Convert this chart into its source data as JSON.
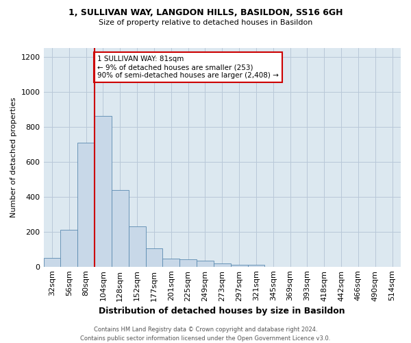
{
  "title1": "1, SULLIVAN WAY, LANGDON HILLS, BASILDON, SS16 6GH",
  "title2": "Size of property relative to detached houses in Basildon",
  "xlabel": "Distribution of detached houses by size in Basildon",
  "ylabel": "Number of detached properties",
  "categories": [
    "32sqm",
    "56sqm",
    "80sqm",
    "104sqm",
    "128sqm",
    "152sqm",
    "177sqm",
    "201sqm",
    "225sqm",
    "249sqm",
    "273sqm",
    "297sqm",
    "321sqm",
    "345sqm",
    "369sqm",
    "393sqm",
    "418sqm",
    "442sqm",
    "466sqm",
    "490sqm",
    "514sqm"
  ],
  "values": [
    50,
    210,
    710,
    860,
    440,
    230,
    105,
    47,
    42,
    35,
    20,
    10,
    10,
    0,
    0,
    0,
    0,
    0,
    0,
    0,
    0
  ],
  "bar_color": "#c8d8e8",
  "bar_edge_color": "#5a8ab0",
  "vline_x_index": 2,
  "vline_color": "#cc0000",
  "annotation_text": "1 SULLIVAN WAY: 81sqm\n← 9% of detached houses are smaller (253)\n90% of semi-detached houses are larger (2,408) →",
  "annotation_box_color": "#cc0000",
  "footer": "Contains HM Land Registry data © Crown copyright and database right 2024.\nContains public sector information licensed under the Open Government Licence v3.0.",
  "ylim": [
    0,
    1250
  ],
  "yticks": [
    0,
    200,
    400,
    600,
    800,
    1000,
    1200
  ],
  "ax_facecolor": "#dce8f0",
  "background_color": "#ffffff",
  "grid_color": "#b8c8d8"
}
